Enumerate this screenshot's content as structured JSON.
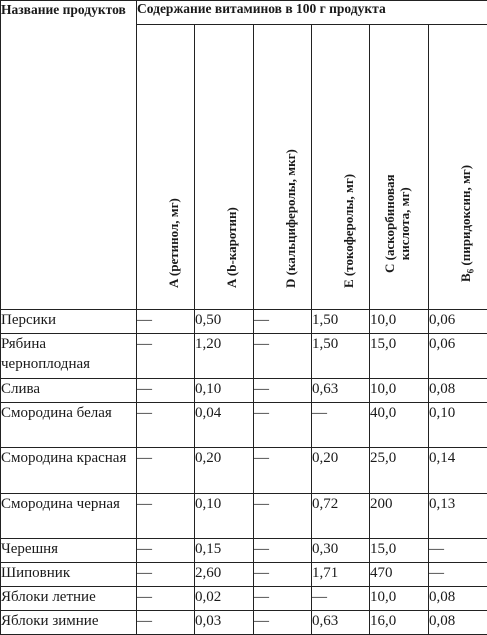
{
  "header": {
    "product_col": "Название продуктов",
    "group": "Содержание витаминов в 100 г продукта",
    "columns": [
      {
        "line1": "A (ретинол, мг)",
        "line2": ""
      },
      {
        "line1": "A (b-каротин)",
        "line2": ""
      },
      {
        "line1": "D (кальциферолы, мкг)",
        "line2": ""
      },
      {
        "line1": "E (токоферолы, мг)",
        "line2": ""
      },
      {
        "line1": "C (аскорбиновая",
        "line2": "кислота, мг)"
      },
      {
        "line1": "B",
        "sub": "6",
        "rest": " (пиридоксин, мг)",
        "line2": ""
      }
    ]
  },
  "rows": [
    {
      "name": "Персики",
      "values": [
        "—",
        "0,50",
        "—",
        "1,50",
        "10,0",
        "0,06"
      ]
    },
    {
      "name": "Рябина черноплодная",
      "values": [
        "—",
        "1,20",
        "—",
        "1,50",
        "15,0",
        "0,06"
      ]
    },
    {
      "name": "Слива",
      "values": [
        "—",
        "0,10",
        "—",
        "0,63",
        "10,0",
        "0,08"
      ]
    },
    {
      "name": "Смородина белая",
      "values": [
        "—",
        "0,04",
        "—",
        "—",
        "40,0",
        "0,10"
      ]
    },
    {
      "name": "Смородина красная",
      "values": [
        "—",
        "0,20",
        "—",
        "0,20",
        "25,0",
        "0,14"
      ]
    },
    {
      "name": "Смородина черная",
      "values": [
        "—",
        "0,10",
        "—",
        "0,72",
        "200",
        "0,13"
      ]
    },
    {
      "name": "Черешня",
      "values": [
        "—",
        "0,15",
        "—",
        "0,30",
        "15,0",
        "—"
      ]
    },
    {
      "name": "Шиповник",
      "values": [
        "—",
        "2,60",
        "—",
        "1,71",
        "470",
        "—"
      ]
    },
    {
      "name": "Яблоки летние",
      "values": [
        "—",
        "0,02",
        "—",
        "—",
        "10,0",
        "0,08"
      ]
    },
    {
      "name": "Яблоки зимние",
      "values": [
        "—",
        "0,03",
        "—",
        "0,63",
        "16,0",
        "0,08"
      ]
    }
  ]
}
